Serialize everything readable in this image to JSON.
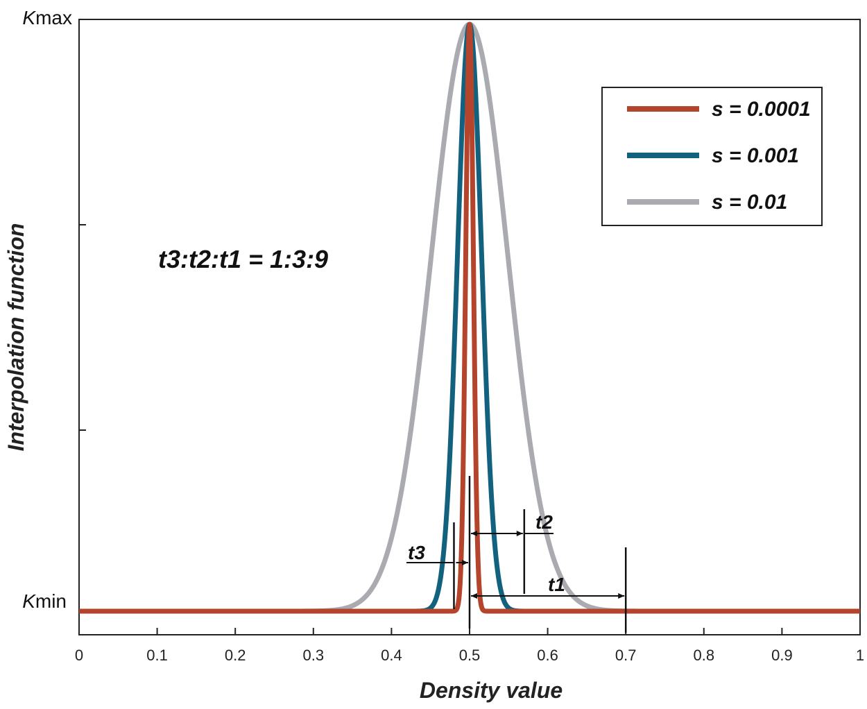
{
  "chart_data": {
    "type": "line",
    "xlabel": "Density value",
    "ylabel": "Interpolation function",
    "xlim": [
      0,
      1
    ],
    "ylim": [
      0,
      1
    ],
    "x_ticks": [
      0,
      0.1,
      0.2,
      0.3,
      0.4,
      0.5,
      0.6,
      0.7,
      0.8,
      0.9,
      1
    ],
    "x_tick_labels": [
      "0",
      "0.1",
      "0.2",
      "0.3",
      "0.4",
      "0.5",
      "0.6",
      "0.7",
      "0.8",
      "0.9",
      "1"
    ],
    "y_tick_labels": {
      "min": {
        "italic": "K",
        "rest": "min"
      },
      "max": {
        "italic": "K",
        "rest": "max"
      }
    },
    "center": 0.5,
    "series": [
      {
        "name": "s = 0.0001",
        "s": 0.0001,
        "color": "#b5442c"
      },
      {
        "name": "s = 0.001",
        "s": 0.001,
        "color": "#12627f"
      },
      {
        "name": "s = 0.01",
        "s": 0.01,
        "color": "#a9abb0"
      }
    ],
    "legend_position": "top-right",
    "ratio_text": "t3:t2:t1 = 1:3:9",
    "annotations": [
      {
        "label": "t3",
        "from": 0.5,
        "to": 0.48
      },
      {
        "label": "t2",
        "from": 0.5,
        "to": 0.57
      },
      {
        "label": "t1",
        "from": 0.5,
        "to": 0.7
      }
    ]
  }
}
